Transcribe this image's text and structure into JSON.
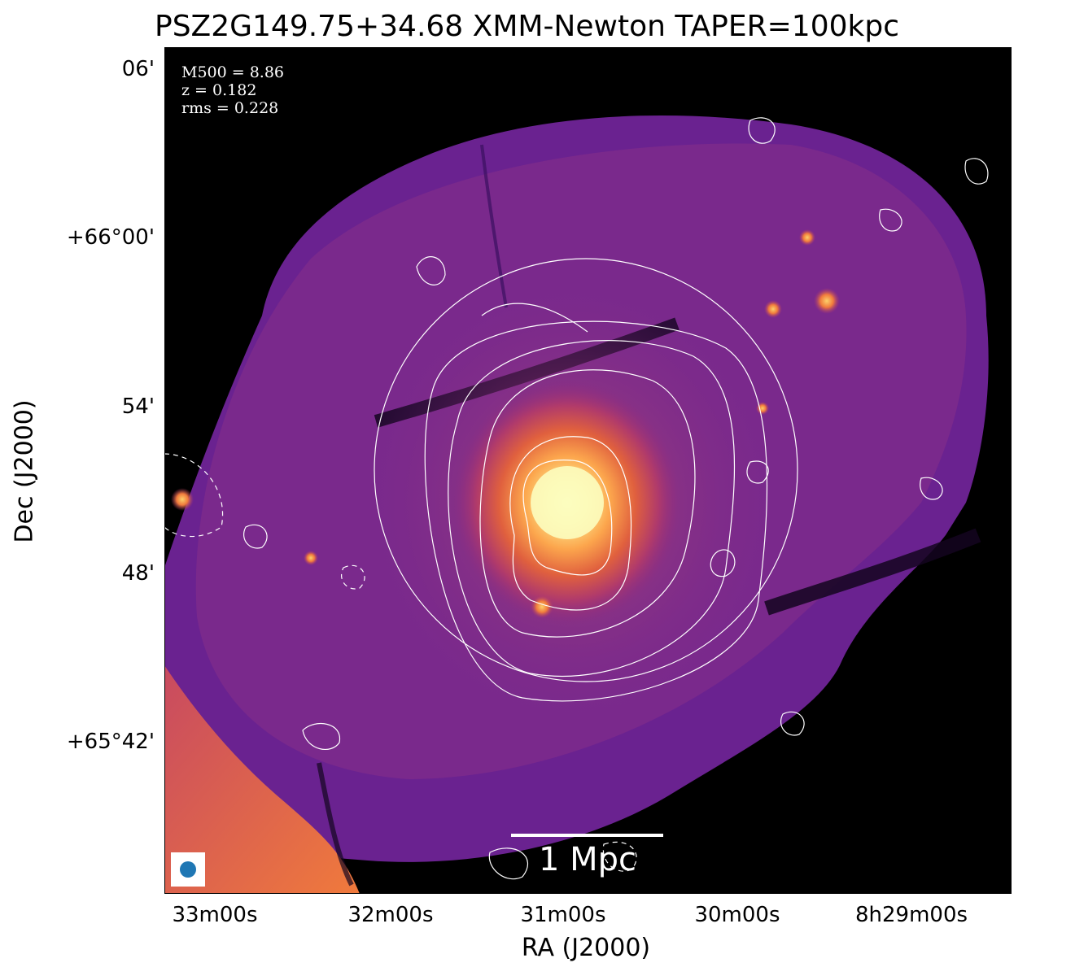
{
  "title": "PSZ2G149.75+34.68 XMM-Newton TAPER=100kpc",
  "axes": {
    "xlabel": "RA (J2000)",
    "ylabel": "Dec (J2000)",
    "xticks": [
      "33m00s",
      "32m00s",
      "31m00s",
      "30m00s",
      "8h29m00s"
    ],
    "yticks": [
      "06'",
      "+66°00'",
      "54'",
      "48'",
      "+65°42'"
    ]
  },
  "info": {
    "mass": "M500 = 8.86",
    "redshift": "z = 0.182",
    "rms": "rms = 0.228"
  },
  "scalebar": {
    "label": "1 Mpc"
  },
  "colors": {
    "background": "#000000",
    "colormap": [
      "#000004",
      "#3b0f70",
      "#8c2981",
      "#de4968",
      "#fe9f6d",
      "#fcfdbf"
    ],
    "contour": "#ffffff",
    "beam": "#1f77b4"
  },
  "icons": {
    "beam": "beam-ellipse-icon"
  }
}
